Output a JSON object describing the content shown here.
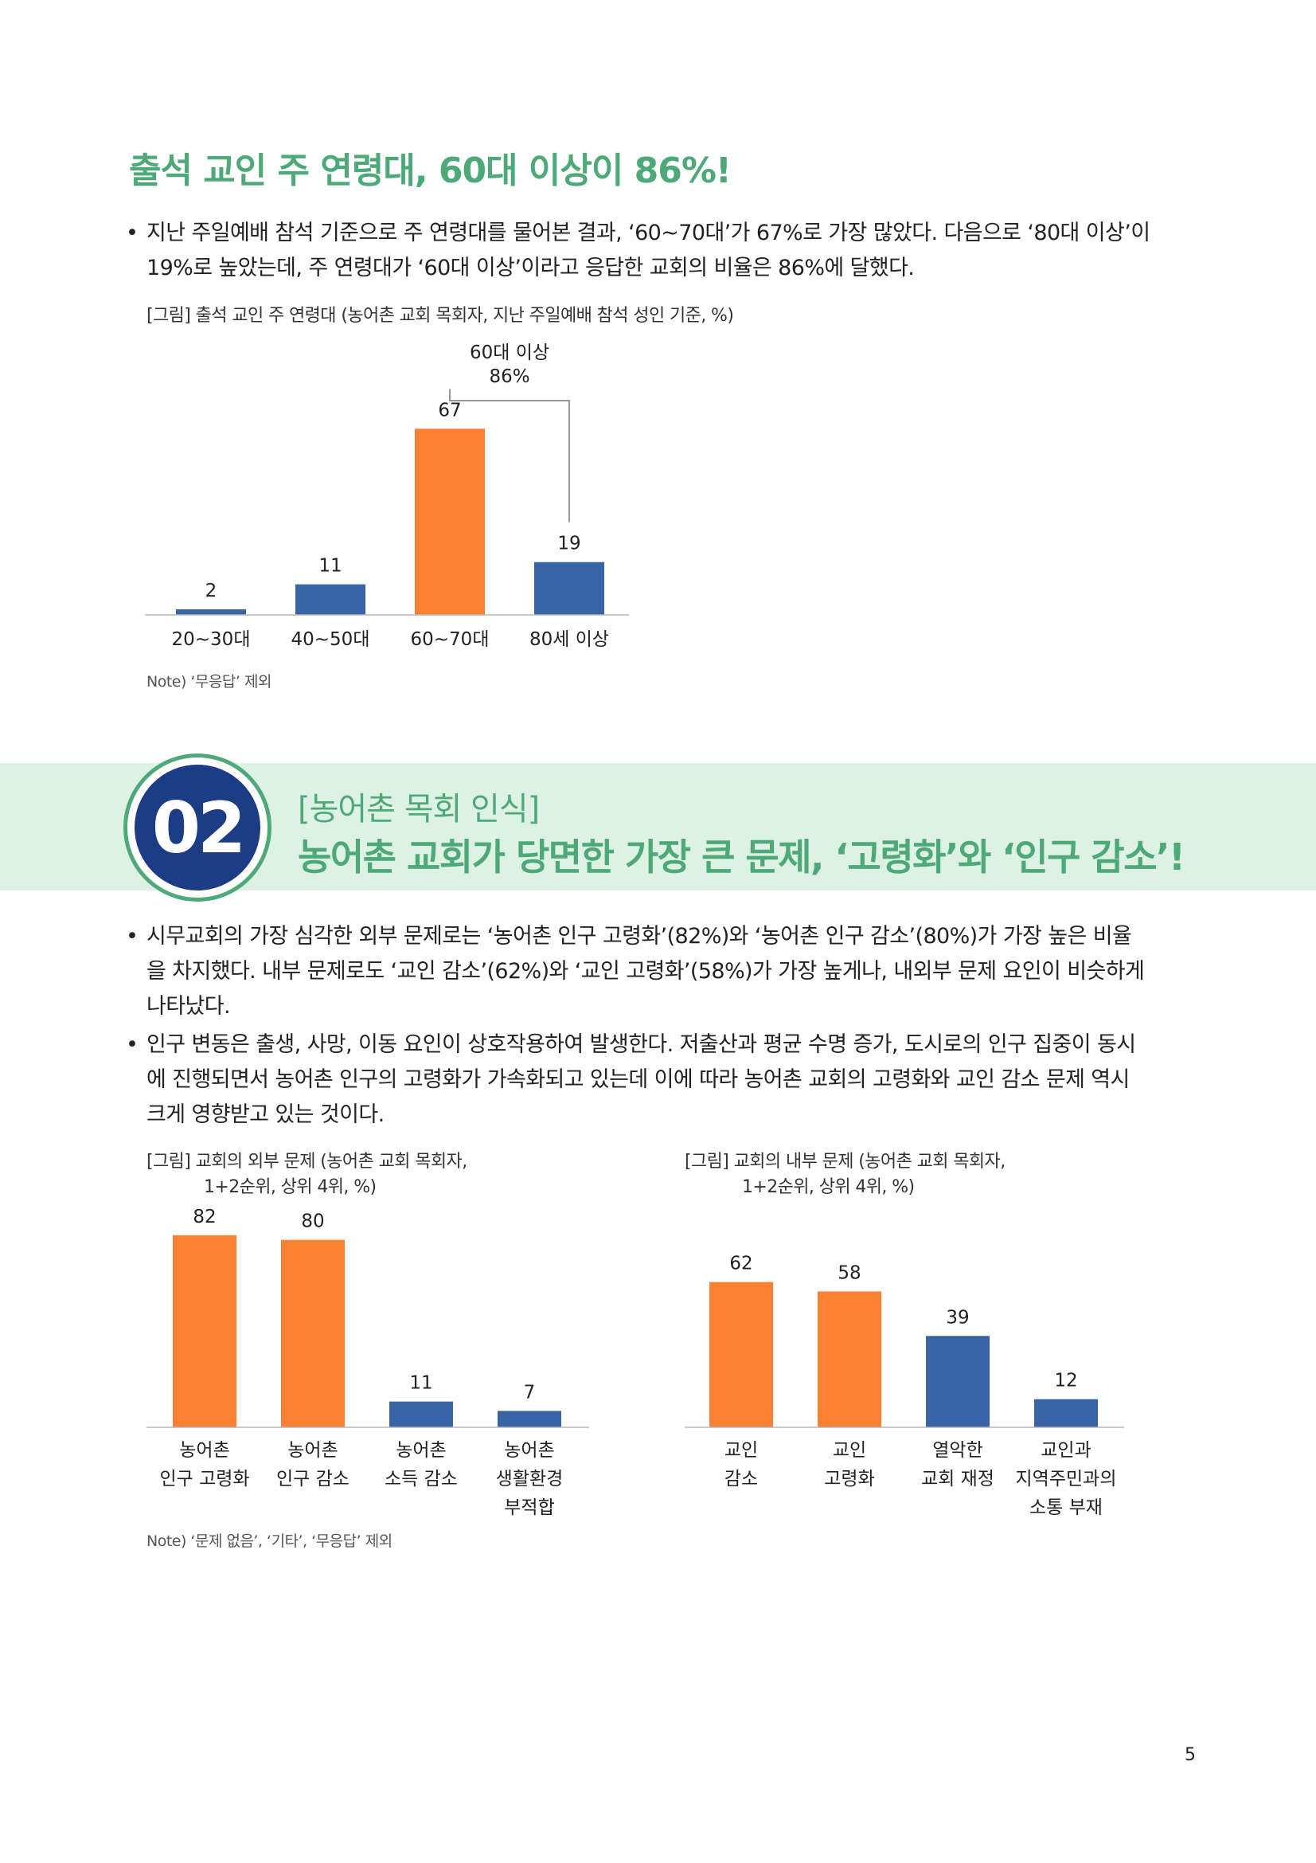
{
  "section1": {
    "title": "출석 교인 주 연령대, 60대 이상이 86%!",
    "bullet": "•",
    "paragraph_lines": [
      "지난 주일예배 참석 기준으로 주 연령대를 물어본 결과, ‘60~70대’가 67%로 가장 많았다. 다음으로 ‘80대 이상’이",
      "19%로 높았는데, 주 연령대가 ‘60대 이상’이라고 응답한 교회의 비율은 86%에 달했다."
    ],
    "figure_caption": "[그림] 출석 교인 주 연령대 (농어촌 교회 목회자, 지난 주일예배 참석 성인 기준, %)",
    "note": "Note) ‘무응답’ 제외"
  },
  "section2": {
    "number": "02",
    "subtitle": "[농어촌 목회 인식]",
    "title": "농어촌 교회가 당면한 가장 큰 문제, ‘고령화’와 ‘인구 감소’!",
    "bullet": "•",
    "paragraph1_lines": [
      "시무교회의 가장 심각한 외부 문제로는 ‘농어촌 인구 고령화’(82%)와 ‘농어촌 인구 감소’(80%)가 가장 높은 비율",
      "을 차지했다. 내부 문제로도 ‘교인 감소’(62%)와 ‘교인 고령화’(58%)가 가장 높게나, 내외부 문제 요인이 비슷하게",
      "나타났다."
    ],
    "paragraph2_lines": [
      "인구 변동은 출생, 사망, 이동 요인이 상호작용하여 발생한다. 저출산과 평균 수명 증가, 도시로의 인구 집중이 동시",
      "에 진행되면서 농어촌 인구의 고령화가 가속화되고 있는데 이에 따라 농어촌 교회의 고령화와 교인 감소 문제 역시",
      "크게 영향받고 있는 것이다."
    ],
    "left_caption_lines": [
      "[그림] 교회의 외부 문제 (농어촌 교회 목회자,",
      "1+2순위, 상위 4위, %)"
    ],
    "right_caption_lines": [
      "[그림] 교회의 내부 문제 (농어촌 교회 목회자,",
      "1+2순위, 상위 4위, %)"
    ],
    "note": "Note) ‘문제 없음’, ‘기타’, ‘무응답’ 제외"
  },
  "page_number": "5",
  "colors": {
    "orange": "#fc7f32",
    "blue": "#3863a5",
    "green": "#4daa78",
    "navy": "#1c3d86",
    "banner": "#def1e5"
  },
  "chart_data": [
    {
      "type": "bar",
      "categories": [
        [
          "20~30대"
        ],
        [
          "40~50대"
        ],
        [
          "60~70대"
        ],
        [
          "80세 이상"
        ]
      ],
      "values": [
        2,
        11,
        67,
        19
      ],
      "colors": [
        "blue",
        "blue",
        "orange",
        "blue"
      ],
      "bracket": {
        "label_lines": [
          "60대 이상",
          "86%"
        ],
        "spans": [
          2,
          3
        ]
      },
      "ylim": [
        0,
        86
      ]
    },
    {
      "type": "bar",
      "categories": [
        [
          "농어촌",
          "인구 고령화"
        ],
        [
          "농어촌",
          "인구 감소"
        ],
        [
          "농어촌",
          "소득 감소"
        ],
        [
          "농어촌",
          "생활환경",
          "부적합"
        ]
      ],
      "values": [
        82,
        80,
        11,
        7
      ],
      "colors": [
        "orange",
        "orange",
        "blue",
        "blue"
      ],
      "ylim": [
        0,
        85
      ]
    },
    {
      "type": "bar",
      "categories": [
        [
          "교인",
          "감소"
        ],
        [
          "교인",
          "고령화"
        ],
        [
          "열악한",
          "교회 재정"
        ],
        [
          "교인과",
          "지역주민과의",
          "소통 부재"
        ]
      ],
      "values": [
        62,
        58,
        39,
        12
      ],
      "colors": [
        "orange",
        "orange",
        "blue",
        "blue"
      ],
      "ylim": [
        0,
        85
      ]
    }
  ]
}
